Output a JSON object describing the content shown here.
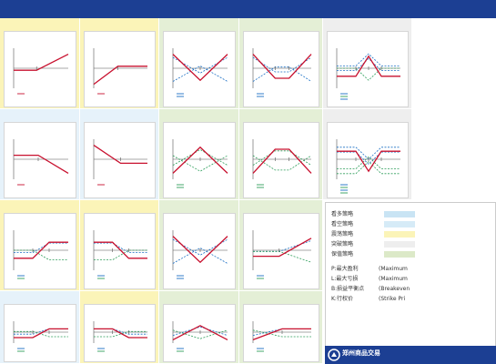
{
  "poster": {
    "title": "",
    "colors": {
      "title_band": "#1c3f93",
      "bullish_strategy": "#fbf4b8",
      "bearish_strategy": "#e6f2fa",
      "volatility_strategy": "#e4efd6",
      "breakout_strategy": "#eeeeee",
      "hedge_strategy": "#e4efd6",
      "payoff_line": "#c8102e",
      "long_leg_line": "#1a6fc4",
      "short_leg_line": "#2e9e5b",
      "axis_line": "#555555",
      "tile_title": "#c2185b"
    },
    "tiles": [
      {
        "title": "",
        "note": "",
        "category": "bullish",
        "payoff_shape": "long-call",
        "legs": [
          {
            "name": "",
            "line": "payoff"
          }
        ]
      },
      {
        "title": "",
        "note": "",
        "category": "bullish",
        "payoff_shape": "short-put",
        "legs": [
          {
            "name": "",
            "line": "payoff"
          }
        ]
      },
      {
        "title": "",
        "note": "",
        "category": "volatility",
        "payoff_shape": "long-straddle",
        "legs": [
          {
            "name": "",
            "line": "long"
          },
          {
            "name": "",
            "line": "long"
          }
        ]
      },
      {
        "title": "",
        "note": "",
        "category": "volatility",
        "payoff_shape": "long-strangle",
        "legs": [
          {
            "name": "",
            "line": "long"
          },
          {
            "name": "",
            "line": "long"
          }
        ]
      },
      {
        "title": "",
        "note": "",
        "category": "breakout",
        "payoff_shape": "long-butterfly",
        "legs": [
          {
            "name": "",
            "line": "long"
          },
          {
            "name": "",
            "line": "short"
          },
          {
            "name": "",
            "line": "long"
          }
        ]
      },
      {
        "title": "",
        "note": "",
        "category": "bearish",
        "payoff_shape": "short-call",
        "legs": [
          {
            "name": "",
            "line": "payoff"
          }
        ]
      },
      {
        "title": "",
        "note": "",
        "category": "bearish",
        "payoff_shape": "long-put",
        "legs": [
          {
            "name": "",
            "line": "payoff"
          }
        ]
      },
      {
        "title": "",
        "note": "",
        "category": "volatility",
        "payoff_shape": "short-straddle",
        "legs": [
          {
            "name": "",
            "line": "short"
          },
          {
            "name": "",
            "line": "short"
          }
        ]
      },
      {
        "title": "",
        "note": "",
        "category": "volatility",
        "payoff_shape": "short-strangle",
        "legs": [
          {
            "name": "",
            "line": "short"
          },
          {
            "name": "",
            "line": "short"
          }
        ]
      },
      {
        "title": "",
        "note": "",
        "category": "breakout",
        "payoff_shape": "short-butterfly",
        "legs": [
          {
            "name": "",
            "line": "long"
          },
          {
            "name": "",
            "line": "short"
          },
          {
            "name": "",
            "line": "long"
          },
          {
            "name": "",
            "line": "short"
          }
        ]
      },
      {
        "title": "",
        "note": "",
        "category": "bullish",
        "payoff_shape": "bull-call-spread",
        "legs": [
          {
            "name": "",
            "line": "long"
          },
          {
            "name": "",
            "line": "short"
          }
        ]
      },
      {
        "title": "",
        "note": "",
        "category": "bullish",
        "payoff_shape": "bear-put-spread",
        "legs": [
          {
            "name": "",
            "line": "long"
          },
          {
            "name": "",
            "line": "short"
          }
        ]
      },
      {
        "title": "",
        "note": "",
        "category": "volatility",
        "payoff_shape": "long-straddle",
        "legs": [
          {
            "name": "",
            "line": "long"
          },
          {
            "name": "",
            "line": "long"
          }
        ]
      },
      {
        "title": "",
        "note": "",
        "category": "hedge",
        "payoff_shape": "protective-put",
        "legs": [
          {
            "name": "",
            "line": "long"
          },
          {
            "name": "",
            "line": "short"
          }
        ]
      },
      {
        "title": "",
        "note": "",
        "category": "bearish",
        "payoff_shape": "bull-put-spread",
        "legs": [
          {
            "name": "",
            "line": "long"
          },
          {
            "name": "",
            "line": "short"
          }
        ]
      },
      {
        "title": "",
        "note": "",
        "category": "bullish",
        "payoff_shape": "bear-call-spread",
        "legs": [
          {
            "name": "",
            "line": "long"
          },
          {
            "name": "",
            "line": "short"
          }
        ]
      },
      {
        "title": "",
        "note": "",
        "category": "volatility",
        "payoff_shape": "short-straddle",
        "legs": [
          {
            "name": "",
            "line": "long"
          },
          {
            "name": "",
            "line": "short"
          }
        ]
      },
      {
        "title": "",
        "note": "",
        "category": "hedge",
        "payoff_shape": "covered-call",
        "legs": [
          {
            "name": "",
            "line": "long"
          },
          {
            "name": "",
            "line": "short"
          }
        ]
      }
    ],
    "legend": {
      "items": [
        {
          "label": "看多策略",
          "color": "#c9e4f4"
        },
        {
          "label": "看空策略",
          "color": "#d6ebf7"
        },
        {
          "label": "震荡策略",
          "color": "#fbf4b8"
        },
        {
          "label": "突破策略",
          "color": "#eeeeee"
        },
        {
          "label": "保值策略",
          "color": "#dce9c8"
        }
      ]
    },
    "key": {
      "items": [
        {
          "term": "P:最大盈利",
          "english": "(Maximum"
        },
        {
          "term": "L:最大亏损",
          "english": "(Maximum"
        },
        {
          "term": "B:损益平衡点",
          "english": "(Breakeven"
        },
        {
          "term": "K:行权价",
          "english": "(Strike Pri"
        }
      ]
    },
    "logo": {
      "text": "郑州商品交易"
    }
  }
}
